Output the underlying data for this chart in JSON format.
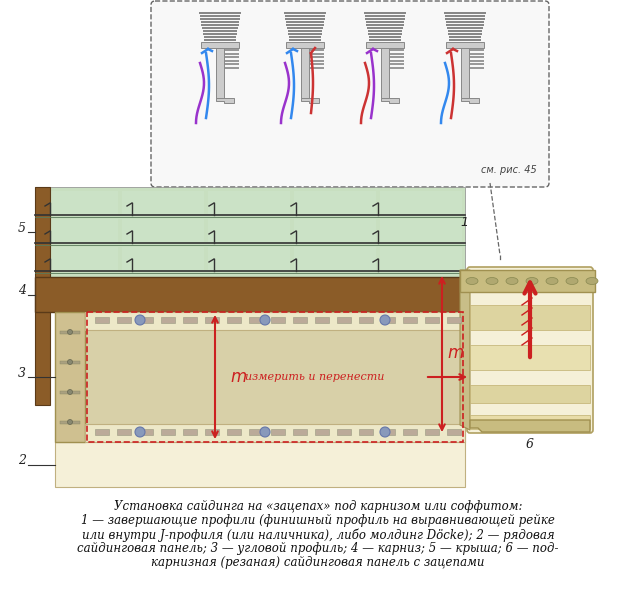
{
  "title_line1": "Установка сайдинга на «зацепах» под карнизом или соффитом:",
  "caption_line2": "1 — завершающие профили (финишный профиль на выравнивающей рейке",
  "caption_line3": "или внутри J-профиля (или наличника), либо молдинг Döcke); 2 — рядовая",
  "caption_line4": "сайдинговая панель; 3 — угловой профиль; 4 — карниз; 5 — крыша; 6 — под-",
  "caption_line5": "карнизная (резаная) сайдинговая панель с зацепами",
  "bg_color": "#ffffff",
  "siding_green": "#c8dfc0",
  "siding_green_dark": "#5a8a5a",
  "panel_beige": "#ede8c8",
  "panel_beige_light": "#f5f0d8",
  "panel_beige_med": "#d8cc98",
  "wood_brown": "#8b5c28",
  "wood_dark": "#5a3a18",
  "corner_tan": "#cfc090",
  "corner_dark": "#a09050",
  "red_color": "#cc2020",
  "label_color": "#222222",
  "inset_bg": "#f8f8f8",
  "inset_border": "#666666",
  "profile_gray": "#cccccc",
  "profile_dark": "#888888",
  "slot_color": "#bbaa99",
  "nail_blue": "#8899bb",
  "text_red": "#cc1111"
}
